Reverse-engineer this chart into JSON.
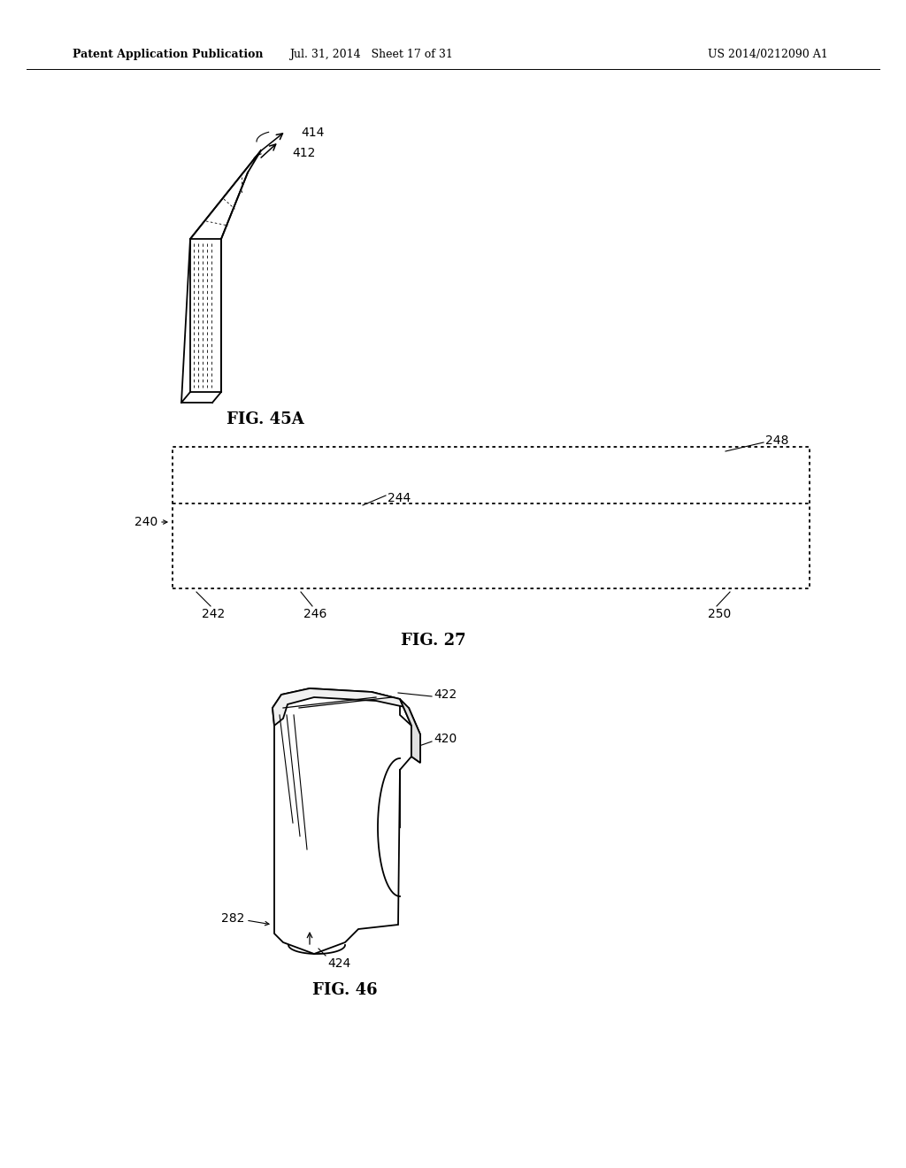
{
  "bg_color": "#ffffff",
  "header_left": "Patent Application Publication",
  "header_mid": "Jul. 31, 2014   Sheet 17 of 31",
  "header_right": "US 2014/0212090 A1",
  "fig45a_label": "FIG. 45A",
  "fig27_label": "FIG. 27",
  "fig46_label": "FIG. 46",
  "label_414": "414",
  "label_412": "412",
  "label_248": "248",
  "label_244": "244",
  "label_240": "240",
  "label_242": "242",
  "label_246": "246",
  "label_250": "250",
  "label_422": "422",
  "label_420": "420",
  "label_282": "282",
  "label_424": "424"
}
